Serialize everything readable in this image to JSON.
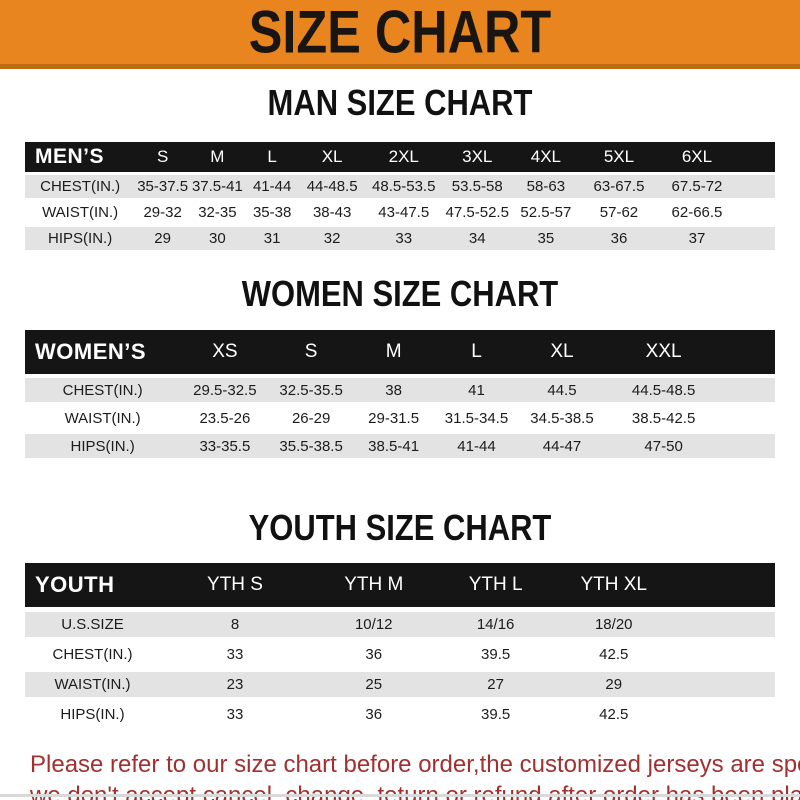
{
  "banner": {
    "title": "SIZE CHART"
  },
  "sections": [
    {
      "id": "men",
      "title": "MAN SIZE CHART",
      "header_label": "MEN’S",
      "sizes": [
        "S",
        "M",
        "L",
        "XL",
        "2XL",
        "3XL",
        "4XL",
        "5XL",
        "6XL"
      ],
      "rows": [
        {
          "label": "CHEST(IN.)",
          "values": [
            "35-37.5",
            "37.5-41",
            "41-44",
            "44-48.5",
            "48.5-53.5",
            "53.5-58",
            "58-63",
            "63-67.5",
            "67.5-72"
          ]
        },
        {
          "label": "WAIST(IN.)",
          "values": [
            "29-32",
            "32-35",
            "35-38",
            "38-43",
            "43-47.5",
            "47.5-52.5",
            "52.5-57",
            "57-62",
            "62-66.5"
          ]
        },
        {
          "label": "HIPS(IN.)",
          "values": [
            "29",
            "30",
            "31",
            "32",
            "33",
            "34",
            "35",
            "36",
            "37"
          ]
        }
      ]
    },
    {
      "id": "women",
      "title": "WOMEN SIZE CHART",
      "header_label": "WOMEN’S",
      "sizes": [
        "XS",
        "S",
        "M",
        "L",
        "XL",
        "XXL"
      ],
      "rows": [
        {
          "label": "CHEST(IN.)",
          "values": [
            "29.5-32.5",
            "32.5-35.5",
            "38",
            "41",
            "44.5",
            "44.5-48.5"
          ]
        },
        {
          "label": "WAIST(IN.)",
          "values": [
            "23.5-26",
            "26-29",
            "29-31.5",
            "31.5-34.5",
            "34.5-38.5",
            "38.5-42.5"
          ]
        },
        {
          "label": "HIPS(IN.)",
          "values": [
            "33-35.5",
            "35.5-38.5",
            "38.5-41",
            "41-44",
            "44-47",
            "47-50"
          ]
        }
      ]
    },
    {
      "id": "youth",
      "title": "YOUTH SIZE CHART",
      "header_label": "YOUTH",
      "sizes": [
        "YTH S",
        "YTH M",
        "YTH L",
        "YTH XL"
      ],
      "rows": [
        {
          "label": "U.S.SIZE",
          "values": [
            "8",
            "10/12",
            "14/16",
            "18/20"
          ]
        },
        {
          "label": "CHEST(IN.)",
          "values": [
            "33",
            "36",
            "39.5",
            "42.5"
          ]
        },
        {
          "label": "WAIST(IN.)",
          "values": [
            "23",
            "25",
            "27",
            "29"
          ]
        },
        {
          "label": "HIPS(IN.)",
          "values": [
            "33",
            "36",
            "39.5",
            "42.5"
          ]
        }
      ]
    }
  ],
  "footer": {
    "line1": "Please refer to our size chart before order,the customized jerseys are special products,",
    "line2": "we don't accept cancel, change, teturn or refund after order has been placed!"
  },
  "colors": {
    "banner_orange": "#E8851F",
    "banner_border": "#BB6C10",
    "header_black": "#151515",
    "row_gray": "#E3E3E3",
    "notice_red": "#A33030"
  }
}
